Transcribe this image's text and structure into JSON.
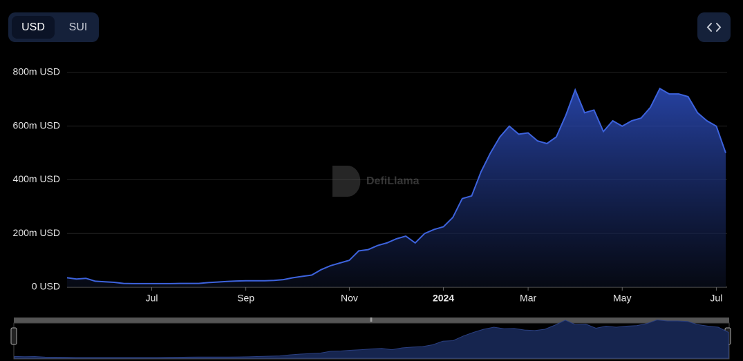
{
  "toggle": [
    "USD",
    "SUI"
  ],
  "watermark": "DefiLlama",
  "chart_data": {
    "type": "area",
    "categories": [
      null,
      null,
      null,
      null,
      null,
      null,
      null,
      null,
      null,
      "Jul",
      null,
      null,
      null,
      null,
      null,
      null,
      null,
      null,
      null,
      "Sep",
      null,
      null,
      null,
      null,
      null,
      null,
      null,
      null,
      null,
      null,
      "Nov",
      null,
      null,
      null,
      null,
      null,
      null,
      null,
      null,
      null,
      "2024",
      null,
      null,
      null,
      null,
      null,
      null,
      null,
      null,
      "Mar",
      null,
      null,
      null,
      null,
      null,
      null,
      null,
      null,
      null,
      "May",
      null,
      null,
      null,
      null,
      null,
      null,
      null,
      null,
      null,
      "Jul",
      null
    ],
    "series": [
      {
        "color": "#3d63dd",
        "values": [
          35,
          30,
          33,
          22,
          20,
          18,
          14,
          13,
          13,
          13,
          13,
          13,
          14,
          14,
          14,
          17,
          19,
          21,
          23,
          24,
          24,
          24,
          25,
          28,
          35,
          40,
          45,
          65,
          80,
          90,
          100,
          135,
          140,
          155,
          165,
          180,
          190,
          165,
          200,
          215,
          225,
          260,
          330,
          340,
          430,
          500,
          560,
          600,
          570,
          575,
          545,
          535,
          560,
          640,
          735,
          650,
          660,
          580,
          620,
          600,
          620,
          630,
          670,
          740,
          720,
          720,
          710,
          650,
          620,
          600,
          500
        ]
      }
    ],
    "ylim": [
      0,
      800
    ],
    "yticks": [
      {
        "value": 0,
        "label": "0 USD"
      },
      {
        "value": 200,
        "label": "200m USD"
      },
      {
        "value": 400,
        "label": "400m USD"
      },
      {
        "value": 600,
        "label": "600m USD"
      },
      {
        "value": 800,
        "label": "800m USD"
      }
    ],
    "grid": true
  }
}
